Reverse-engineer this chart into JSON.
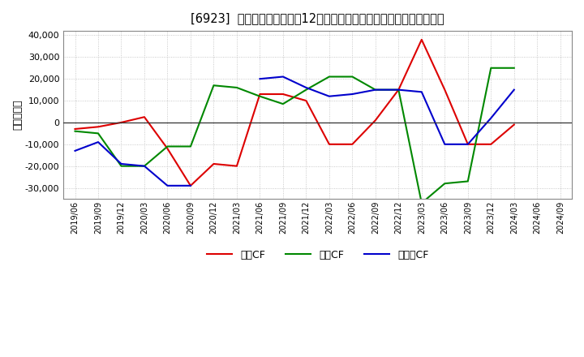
{
  "title": "[6923]  キャッシュフローの12か月移動合計の対前年同期増減額の推移",
  "ylabel": "（百万円）",
  "background_color": "#ffffff",
  "plot_background": "#ffffff",
  "grid_color": "#bbbbbb",
  "x_labels": [
    "2019/06",
    "2019/09",
    "2019/12",
    "2020/03",
    "2020/06",
    "2020/09",
    "2020/12",
    "2021/03",
    "2021/06",
    "2021/09",
    "2021/12",
    "2022/03",
    "2022/06",
    "2022/09",
    "2022/12",
    "2023/03",
    "2023/06",
    "2023/09",
    "2023/12",
    "2024/03",
    "2024/06",
    "2024/09"
  ],
  "operating_cf": [
    -3000,
    -2000,
    0,
    2500,
    -12000,
    -29000,
    -19000,
    -20000,
    13000,
    13000,
    10000,
    -10000,
    -10000,
    1000,
    15000,
    38000,
    15000,
    -10000,
    -10000,
    -1000,
    null,
    null
  ],
  "investing_cf": [
    -4000,
    -5000,
    -20000,
    -20000,
    -11000,
    -11000,
    17000,
    16000,
    12000,
    8500,
    15000,
    21000,
    21000,
    15000,
    15000,
    -37000,
    -28000,
    -27000,
    25000,
    25000,
    null,
    null
  ],
  "free_cf": [
    -13000,
    -9000,
    -19000,
    -20000,
    -29000,
    -29000,
    null,
    null,
    20000,
    21000,
    16000,
    12000,
    13000,
    15000,
    15000,
    14000,
    -10000,
    -10000,
    2000,
    15000,
    null,
    null
  ],
  "ylim": [
    -35000,
    42000
  ],
  "yticks": [
    -30000,
    -20000,
    -10000,
    0,
    10000,
    20000,
    30000,
    40000
  ],
  "line_colors": {
    "operating": "#dd0000",
    "investing": "#008800",
    "free": "#0000cc"
  },
  "legend_labels": [
    "営業CF",
    "投資CF",
    "フリーCF"
  ]
}
